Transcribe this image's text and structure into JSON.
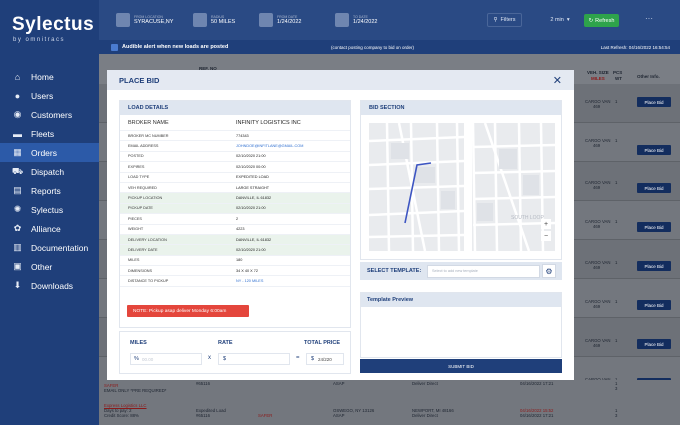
{
  "app": {
    "logo_main": "Sylectus",
    "logo_sub": "by omnitracs"
  },
  "sidebar": {
    "items": [
      {
        "label": "Home",
        "icon": "home-icon"
      },
      {
        "label": "Users",
        "icon": "users-icon"
      },
      {
        "label": "Customers",
        "icon": "customers-icon"
      },
      {
        "label": "Fleets",
        "icon": "truck-icon"
      },
      {
        "label": "Orders",
        "icon": "orders-icon"
      },
      {
        "label": "Dispatch",
        "icon": "dispatch-icon"
      },
      {
        "label": "Reports",
        "icon": "reports-icon"
      },
      {
        "label": "Sylectus",
        "icon": "sylectus-icon"
      },
      {
        "label": "Alliance",
        "icon": "alliance-icon"
      },
      {
        "label": "Documentation",
        "icon": "documentation-icon"
      },
      {
        "label": "Other",
        "icon": "other-icon"
      },
      {
        "label": "Downloads",
        "icon": "download-icon"
      }
    ]
  },
  "header": {
    "filters": [
      {
        "label": "FROM LOCATION",
        "value": "SYRACUSE,NY"
      },
      {
        "label": "RADIUS",
        "value": "50 MILES"
      },
      {
        "label": "FROM DATE",
        "value": "1/24/2022"
      },
      {
        "label": "TO DATE",
        "value": "1/24/2022"
      }
    ],
    "filters_button": "Filters",
    "interval": "2 min",
    "refresh_button": "Refresh",
    "more": "···"
  },
  "alert": {
    "text": "Audible alert when new loads are posted",
    "contact": "(contact posting company to bid on order)",
    "last_refresh": "Last Refresh: 04/16/2022 16:54:54"
  },
  "table": {
    "headers": {
      "ref": "REF. NO",
      "veh": "VEH. SIZE",
      "miles": "MILES",
      "pcs": "PCS",
      "wt": "WT",
      "other": "Other Info."
    },
    "rows": [
      {
        "veh": "CARGO VAN",
        "pcs": "1",
        "wt": "469",
        "btn": "Place Bid"
      },
      {
        "veh": "CARGO VAN",
        "pcs": "1",
        "wt": "469",
        "btn": "Place Bid"
      },
      {
        "veh": "CARGO VAN",
        "pcs": "1",
        "wt": "469",
        "btn": "Place Bid"
      },
      {
        "veh": "CARGO VAN",
        "pcs": "1",
        "wt": "469",
        "btn": "Place Bid"
      },
      {
        "veh": "CARGO VAN",
        "pcs": "1",
        "wt": "469",
        "btn": "Place Bid"
      },
      {
        "veh": "CARGO VAN",
        "pcs": "1",
        "wt": "469",
        "btn": "Place Bid"
      },
      {
        "veh": "CARGO VAN",
        "pcs": "1",
        "wt": "469",
        "btn": "Place Bid"
      },
      {
        "veh": "CARGO VAN",
        "pcs": "1",
        "wt": "469",
        "btn": "Place Bid"
      },
      {
        "veh": "CARGO VAN",
        "pcs": "1",
        "wt": "469",
        "btn": "Place Bid"
      }
    ],
    "bottom_rows": [
      {
        "company": "SAFER",
        "note": "EMAIL ONLY *PRE REQUIRED*",
        "id": "#65116",
        "asap": "ASAP",
        "type": "Deliver Direct",
        "date": "04/16/2022 17:21",
        "pcs": "1",
        "wt": "3"
      },
      {
        "company": "Express Logistics LLC",
        "note": "Days to pay: 2",
        "note2": "Credit Score: 88%",
        "id": "#65116",
        "load": "Expedited Load",
        "red": "SAFER",
        "origin": "OSWEGO, NY 13126",
        "dest": "NEWPORT, MI 48166",
        "asap": "ASAP",
        "type": "Deliver Direct",
        "date": "04/16/2022 15:52",
        "date2": "04/16/2022 17:21",
        "pcs": "1",
        "wt": "3"
      }
    ]
  },
  "modal": {
    "title": "PLACE BID",
    "close": "✕",
    "load_details": {
      "header": "LOAD DETAILS",
      "rows": [
        {
          "label": "BROKER NAME",
          "value": "INFINITY LOGISTICS INC",
          "hl": false
        },
        {
          "label": "BROKER MC NUMBER",
          "value": "774343",
          "hl": false
        },
        {
          "label": "EMAIL ADDRESS",
          "value": "JOHNDOE@INFITLANE@GMAIL.COM",
          "hl": false,
          "link": true
        },
        {
          "label": "POSTED",
          "value": "02/10/2020 21:00",
          "hl": false
        },
        {
          "label": "EXPIRES",
          "value": "02/10/2020 00:00",
          "hl": false
        },
        {
          "label": "LOAD TYPE",
          "value": "EXPEDITED LOAD",
          "hl": false
        },
        {
          "label": "VEH REQUIRED",
          "value": "LARGE STRAIGHT",
          "hl": false
        },
        {
          "label": "PICKUP LOCATION",
          "value": "DANVILLE, IL 61832",
          "hl": true
        },
        {
          "label": "PICKUP DATE",
          "value": "02/10/2020 21:00",
          "hl": true
        },
        {
          "label": "PIECES",
          "value": "2",
          "hl": false
        },
        {
          "label": "WEIGHT",
          "value": "4223",
          "hl": false
        },
        {
          "label": "DELIVERY LOCATION",
          "value": "DANVILLE, IL 61832",
          "hl": true
        },
        {
          "label": "DELIVERY DATE",
          "value": "02/10/2020 21:00",
          "hl": true
        },
        {
          "label": "MILES",
          "value": "180",
          "hl": false
        },
        {
          "label": "DIMENSIONS",
          "value": "34 x 40 x 72",
          "hl": false
        },
        {
          "label": "DISTANCE TO PICKUP",
          "value": "NY - 120 MILES",
          "hl": false
        }
      ],
      "note": "NOTE: Pickup asap deliver Monday 6:00am"
    },
    "calc": {
      "miles_label": "MILES",
      "rate_label": "RATE",
      "total_label": "TOTAL PRICE",
      "miles_prefix": "%",
      "miles_placeholder": "00.00",
      "mult": "x",
      "rate_prefix": "$",
      "eq": "=",
      "total_prefix": "$",
      "total_value": "24/220"
    },
    "bid_section": {
      "header": "BID SECTION",
      "zoom_in": "+",
      "zoom_out": "−",
      "map_label": "SOUTH LOOP"
    },
    "template": {
      "label": "SELECT TEMPLATE:",
      "placeholder": "Select to add new template",
      "gear": "⚙"
    },
    "preview": {
      "header": "Template Preview"
    },
    "submit": "SUBMIT BID"
  }
}
